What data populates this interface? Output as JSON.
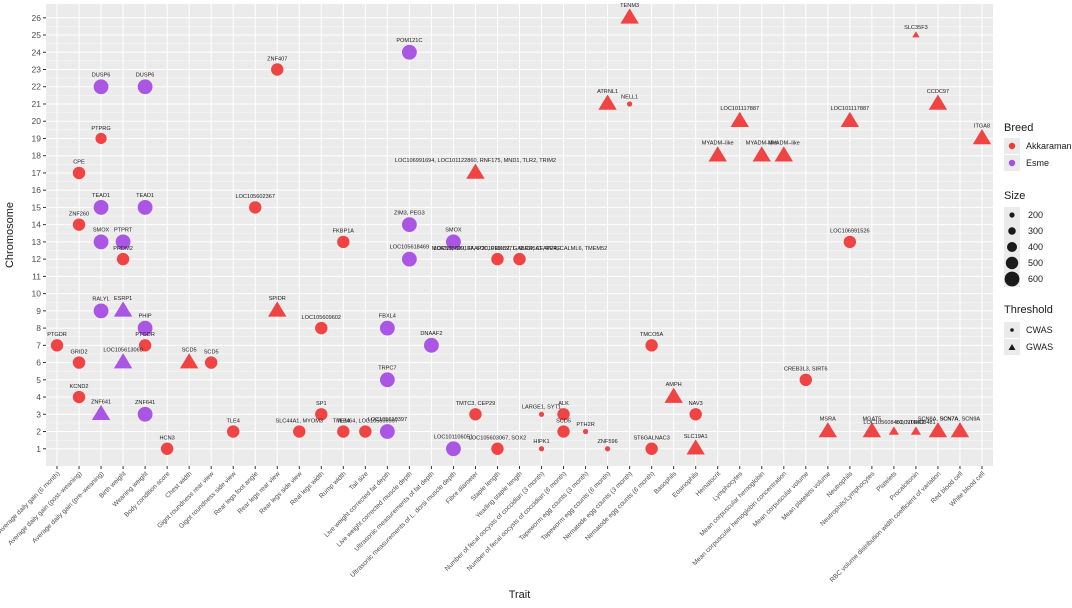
{
  "chart_data": {
    "type": "scatter",
    "xlabel": "Trait",
    "ylabel": "Chromosome",
    "ylim": [
      0,
      26.8
    ],
    "y_ticks": [
      1,
      2,
      3,
      4,
      5,
      6,
      7,
      8,
      9,
      10,
      11,
      12,
      13,
      14,
      15,
      16,
      17,
      18,
      19,
      20,
      21,
      22,
      23,
      24,
      25,
      26
    ],
    "grid": true,
    "legend_position": "right",
    "colors": {
      "Akkaraman": "#f03b3b",
      "Esme": "#a64de4",
      "panel": "#ebebeb",
      "grid": "#ffffff"
    },
    "categories": [
      "Average daily gain (6 month)",
      "Average daily gain (post–weaning)",
      "Average daily gain (pre–weaning)",
      "Birth weight",
      "Weaning weight",
      "Body condition score",
      "Chest width",
      "Gigot roundness rear view",
      "Gigot roundness side view",
      "Rear legs foot angle",
      "Rear legs rear view",
      "Rear legs side view",
      "Real legs width",
      "Rump width",
      "Tail size",
      "Live weight corrected fat depth",
      "Live weight corrected muscle depth",
      "Ultrasonic measurements of fat depth",
      "Ultrasonic measurements of L. dorsi muscle depth",
      "Fibre diameter",
      "Staple length",
      "Yearling staple length",
      "Number of fecal oocysts of coccidian (3 month)",
      "Number of fecal oocysts of coccidian (6 month)",
      "Tapeworm egg counts (3 month)",
      "Tapeworm egg counts (6 month)",
      "Nematode egg counts (3 month)",
      "Nematode egg counts (6 month)",
      "Basophils",
      "Eosinophils",
      "Hematocrit",
      "Lymphocytes",
      "Mean corpuscular hemoglobin",
      "Mean corpuscular hemoglobin concentration",
      "Mean corpuscular volume",
      "Mean platelets volume",
      "Neutrophils",
      "Neutrophils/Lymphocytes",
      "Platelets",
      "Procalcitonin",
      "RBC volume distribution width coefficient of variation",
      "Red blood cell",
      "White blood cell"
    ],
    "legend": {
      "breed_title": "Breed",
      "breeds": [
        "Akkaraman",
        "Esme"
      ],
      "size_title": "Size",
      "sizes": [
        200,
        300,
        400,
        500,
        600
      ],
      "threshold_title": "Threshold",
      "thresholds": [
        "CWAS",
        "GWAS"
      ]
    },
    "points": [
      {
        "x": 0,
        "y": 7,
        "breed": "Akkaraman",
        "threshold": "CWAS",
        "size": 450,
        "label": "PTGDR"
      },
      {
        "x": 1,
        "y": 17,
        "breed": "Akkaraman",
        "threshold": "CWAS",
        "size": 450,
        "label": "CPE"
      },
      {
        "x": 1,
        "y": 14,
        "breed": "Akkaraman",
        "threshold": "CWAS",
        "size": 450,
        "label": "ZNF260"
      },
      {
        "x": 1,
        "y": 6,
        "breed": "Akkaraman",
        "threshold": "CWAS",
        "size": 450,
        "label": "GRID2"
      },
      {
        "x": 1,
        "y": 4,
        "breed": "Akkaraman",
        "threshold": "CWAS",
        "size": 450,
        "label": "KCND2"
      },
      {
        "x": 2,
        "y": 22,
        "breed": "Esme",
        "threshold": "CWAS",
        "size": 550,
        "label": "DUSP6"
      },
      {
        "x": 2,
        "y": 19,
        "breed": "Akkaraman",
        "threshold": "CWAS",
        "size": 400,
        "label": "PTPRG"
      },
      {
        "x": 2,
        "y": 15,
        "breed": "Esme",
        "threshold": "CWAS",
        "size": 550,
        "label": "TEAD1"
      },
      {
        "x": 2,
        "y": 13,
        "breed": "Esme",
        "threshold": "CWAS",
        "size": 550,
        "label": "SMOX"
      },
      {
        "x": 2,
        "y": 9,
        "breed": "Esme",
        "threshold": "CWAS",
        "size": 550,
        "label": "RALYL"
      },
      {
        "x": 2,
        "y": 3,
        "breed": "Esme",
        "threshold": "GWAS",
        "size": 600,
        "label": "ZNF641"
      },
      {
        "x": 3,
        "y": 13,
        "breed": "Esme",
        "threshold": "CWAS",
        "size": 550,
        "label": "PTPRT"
      },
      {
        "x": 3,
        "y": 12,
        "breed": "Akkaraman",
        "threshold": "CWAS",
        "size": 450,
        "label": "PRDM2"
      },
      {
        "x": 3,
        "y": 9,
        "breed": "Esme",
        "threshold": "GWAS",
        "size": 600,
        "label": "ESRP1"
      },
      {
        "x": 3,
        "y": 6,
        "breed": "Esme",
        "threshold": "GWAS",
        "size": 600,
        "label": "LOC105613060"
      },
      {
        "x": 4,
        "y": 22,
        "breed": "Esme",
        "threshold": "CWAS",
        "size": 550,
        "label": "DUSP6"
      },
      {
        "x": 4,
        "y": 15,
        "breed": "Esme",
        "threshold": "CWAS",
        "size": 550,
        "label": "TEAD1"
      },
      {
        "x": 4,
        "y": 8,
        "breed": "Esme",
        "threshold": "CWAS",
        "size": 550,
        "label": "PHIP"
      },
      {
        "x": 4,
        "y": 7,
        "breed": "Akkaraman",
        "threshold": "CWAS",
        "size": 450,
        "label": "PTGDR"
      },
      {
        "x": 4,
        "y": 3,
        "breed": "Esme",
        "threshold": "CWAS",
        "size": 550,
        "label": "ZNF641"
      },
      {
        "x": 5,
        "y": 1,
        "breed": "Akkaraman",
        "threshold": "CWAS",
        "size": 450,
        "label": "HCN3"
      },
      {
        "x": 6,
        "y": 6,
        "breed": "Akkaraman",
        "threshold": "GWAS",
        "size": 600,
        "label": "SCD5"
      },
      {
        "x": 7,
        "y": 6,
        "breed": "Akkaraman",
        "threshold": "CWAS",
        "size": 450,
        "label": "SCD5"
      },
      {
        "x": 8,
        "y": 2,
        "breed": "Akkaraman",
        "threshold": "CWAS",
        "size": 450,
        "label": "TLE4"
      },
      {
        "x": 9,
        "y": 15,
        "breed": "Akkaraman",
        "threshold": "CWAS",
        "size": 450,
        "label": "LOC105602367"
      },
      {
        "x": 10,
        "y": 23,
        "breed": "Akkaraman",
        "threshold": "CWAS",
        "size": 450,
        "label": "ZNF407"
      },
      {
        "x": 10,
        "y": 9,
        "breed": "Akkaraman",
        "threshold": "GWAS",
        "size": 600,
        "label": "SPIDR"
      },
      {
        "x": 11,
        "y": 2,
        "breed": "Akkaraman",
        "threshold": "CWAS",
        "size": 450,
        "label": "SLC44A1, MYOM3"
      },
      {
        "x": 12,
        "y": 8,
        "breed": "Akkaraman",
        "threshold": "CWAS",
        "size": 450,
        "label": "LOC105609602"
      },
      {
        "x": 12,
        "y": 3,
        "breed": "Akkaraman",
        "threshold": "CWAS",
        "size": 450,
        "label": "SP1"
      },
      {
        "x": 13,
        "y": 13,
        "breed": "Akkaraman",
        "threshold": "CWAS",
        "size": 450,
        "label": "FKBP1A"
      },
      {
        "x": 13,
        "y": 2,
        "breed": "Akkaraman",
        "threshold": "CWAS",
        "size": 450,
        "label": "TLE4"
      },
      {
        "x": 14,
        "y": 2,
        "breed": "Akkaraman",
        "threshold": "CWAS",
        "size": 450,
        "label": "TMEM64, LOC105606997"
      },
      {
        "x": 15,
        "y": 2,
        "breed": "Esme",
        "threshold": "CWAS",
        "size": 550,
        "label": "LOC105610397"
      },
      {
        "x": 16,
        "y": 24,
        "breed": "Esme",
        "threshold": "CWAS",
        "size": 550,
        "label": "POM121C"
      },
      {
        "x": 16,
        "y": 14,
        "breed": "Esme",
        "threshold": "CWAS",
        "size": 550,
        "label": "ZIM3, PEG3"
      },
      {
        "x": 16,
        "y": 12,
        "breed": "Esme",
        "threshold": "CWAS",
        "size": 550,
        "label": "LOC105618469"
      },
      {
        "x": 15,
        "y": 8,
        "breed": "Esme",
        "threshold": "CWAS",
        "size": 550,
        "label": "FBXL4"
      },
      {
        "x": 15,
        "y": 5,
        "breed": "Esme",
        "threshold": "CWAS",
        "size": 550,
        "label": "TRPC7"
      },
      {
        "x": 17,
        "y": 7,
        "breed": "Esme",
        "threshold": "CWAS",
        "size": 550,
        "label": "DNAAF2"
      },
      {
        "x": 18,
        "y": 13,
        "breed": "Esme",
        "threshold": "CWAS",
        "size": 550,
        "label": "SMOX"
      },
      {
        "x": 18,
        "y": 1,
        "breed": "Esme",
        "threshold": "CWAS",
        "size": 550,
        "label": "LOC101106051"
      },
      {
        "x": 19,
        "y": 17,
        "breed": "Akkaraman",
        "threshold": "GWAS",
        "size": 600,
        "label": "LOC106991694, LOC101122860, RNF175, MND1, TLR2, TRIM2"
      },
      {
        "x": 19,
        "y": 3,
        "breed": "Akkaraman",
        "threshold": "CWAS",
        "size": 450,
        "label": "TMTC3, CEP29"
      },
      {
        "x": 20,
        "y": 12,
        "breed": "Akkaraman",
        "threshold": "CWAS",
        "size": 450,
        "label": "LOC105609137, LOC101118971, SLC45A1, RERE"
      },
      {
        "x": 20,
        "y": 1,
        "breed": "Akkaraman",
        "threshold": "CWAS",
        "size": 450,
        "label": "LOC105603067, SOX2"
      },
      {
        "x": 21,
        "y": 12,
        "breed": "Akkaraman",
        "threshold": "CWAS",
        "size": 450,
        "label": "MORN1, SKI, FAAP20, PRKCZ, GABRD, CFAP74, CALML6, TMEM52"
      },
      {
        "x": 22,
        "y": 3,
        "breed": "Akkaraman",
        "threshold": "CWAS",
        "size": 150,
        "label": "LARGE1, SYT1"
      },
      {
        "x": 22,
        "y": 1,
        "breed": "Akkaraman",
        "threshold": "CWAS",
        "size": 150,
        "label": "HIPK1"
      },
      {
        "x": 23,
        "y": 3,
        "breed": "Akkaraman",
        "threshold": "CWAS",
        "size": 450,
        "label": "ALK"
      },
      {
        "x": 23,
        "y": 2,
        "breed": "Akkaraman",
        "threshold": "CWAS",
        "size": 450,
        "label": "SCD5"
      },
      {
        "x": 24,
        "y": 2,
        "breed": "Akkaraman",
        "threshold": "CWAS",
        "size": 150,
        "label": "PTH2R"
      },
      {
        "x": 25,
        "y": 21,
        "breed": "Akkaraman",
        "threshold": "GWAS",
        "size": 600,
        "label": "ATRNL1"
      },
      {
        "x": 25,
        "y": 1,
        "breed": "Akkaraman",
        "threshold": "CWAS",
        "size": 150,
        "label": "ZNF596"
      },
      {
        "x": 26,
        "y": 26,
        "breed": "Akkaraman",
        "threshold": "GWAS",
        "size": 600,
        "label": "TENM3"
      },
      {
        "x": 26,
        "y": 21,
        "breed": "Akkaraman",
        "threshold": "CWAS",
        "size": 150,
        "label": "NELL1"
      },
      {
        "x": 27,
        "y": 7,
        "breed": "Akkaraman",
        "threshold": "CWAS",
        "size": 450,
        "label": "TMCO5A"
      },
      {
        "x": 27,
        "y": 1,
        "breed": "Akkaraman",
        "threshold": "CWAS",
        "size": 450,
        "label": "ST6GALNAC3"
      },
      {
        "x": 28,
        "y": 4,
        "breed": "Akkaraman",
        "threshold": "GWAS",
        "size": 600,
        "label": "AMPH"
      },
      {
        "x": 29,
        "y": 3,
        "breed": "Akkaraman",
        "threshold": "CWAS",
        "size": 450,
        "label": "NAV3"
      },
      {
        "x": 29,
        "y": 1,
        "breed": "Akkaraman",
        "threshold": "GWAS",
        "size": 600,
        "label": "SLC19A1"
      },
      {
        "x": 30,
        "y": 18,
        "breed": "Akkaraman",
        "threshold": "GWAS",
        "size": 600,
        "label": "MYADM–like"
      },
      {
        "x": 31,
        "y": 20,
        "breed": "Akkaraman",
        "threshold": "GWAS",
        "size": 600,
        "label": "LOC101117887"
      },
      {
        "x": 32,
        "y": 18,
        "breed": "Akkaraman",
        "threshold": "GWAS",
        "size": 600,
        "label": "MYADM–like"
      },
      {
        "x": 33,
        "y": 18,
        "breed": "Akkaraman",
        "threshold": "GWAS",
        "size": 600,
        "label": "MYADM–like"
      },
      {
        "x": 34,
        "y": 5,
        "breed": "Akkaraman",
        "threshold": "CWAS",
        "size": 450,
        "label": "CREB3L3, SIRT6"
      },
      {
        "x": 35,
        "y": 2,
        "breed": "Akkaraman",
        "threshold": "GWAS",
        "size": 600,
        "label": "MSRA"
      },
      {
        "x": 36,
        "y": 20,
        "breed": "Akkaraman",
        "threshold": "GWAS",
        "size": 600,
        "label": "LOC101117887"
      },
      {
        "x": 36,
        "y": 13,
        "breed": "Akkaraman",
        "threshold": "CWAS",
        "size": 450,
        "label": "LOC106991526"
      },
      {
        "x": 37,
        "y": 2,
        "breed": "Akkaraman",
        "threshold": "GWAS",
        "size": 600,
        "label": "MGAT5"
      },
      {
        "x": 38,
        "y": 2,
        "breed": "Akkaraman",
        "threshold": "GWAS",
        "size": 300,
        "label": "LOC105608481, NTRK2"
      },
      {
        "x": 39,
        "y": 25,
        "breed": "Akkaraman",
        "threshold": "GWAS",
        "size": 200,
        "label": "SLC35F3"
      },
      {
        "x": 39,
        "y": 2,
        "breed": "Akkaraman",
        "threshold": "GWAS",
        "size": 300,
        "label": "LOC105608481"
      },
      {
        "x": 40,
        "y": 21,
        "breed": "Akkaraman",
        "threshold": "GWAS",
        "size": 600,
        "label": "CCDC97"
      },
      {
        "x": 40,
        "y": 2,
        "breed": "Akkaraman",
        "threshold": "GWAS",
        "size": 600,
        "label": "SCN8A, SCN7A"
      },
      {
        "x": 41,
        "y": 2,
        "breed": "Akkaraman",
        "threshold": "GWAS",
        "size": 600,
        "label": "SCN7A, SCN9A"
      },
      {
        "x": 42,
        "y": 19,
        "breed": "Akkaraman",
        "threshold": "GWAS",
        "size": 600,
        "label": "ITGA8"
      }
    ]
  }
}
